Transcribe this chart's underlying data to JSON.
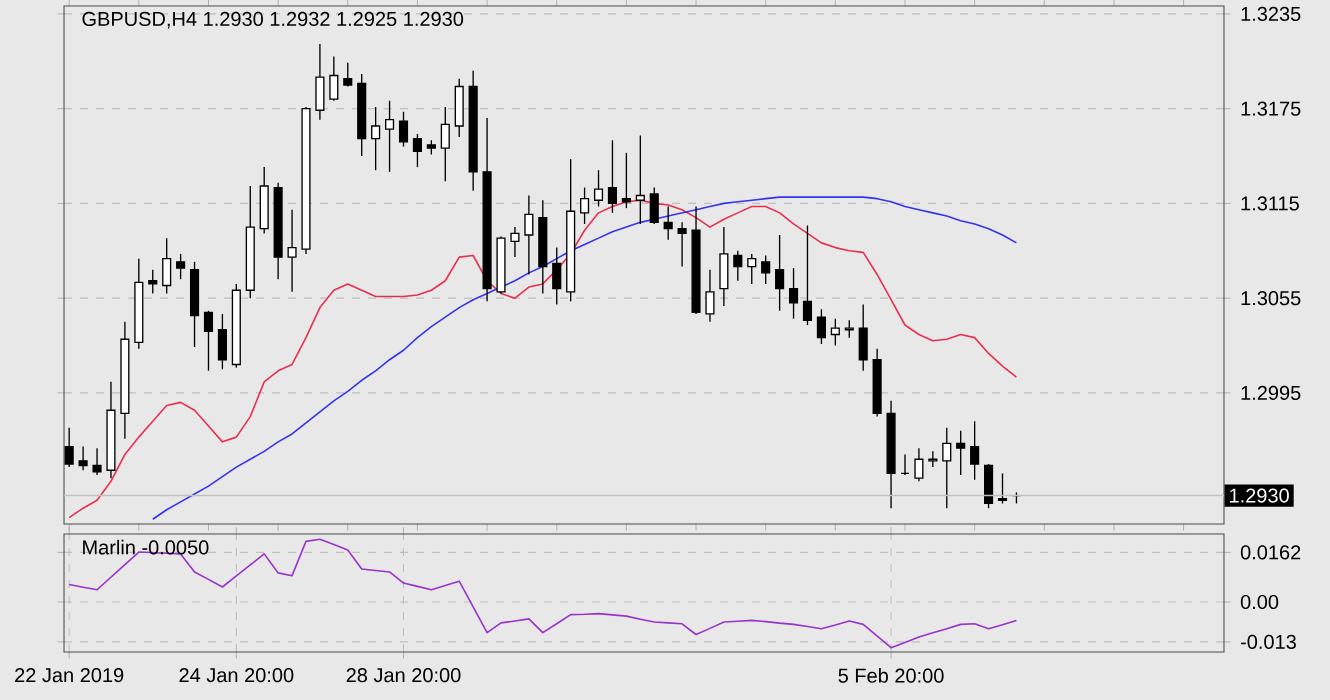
{
  "chart_data": [
    {
      "type": "candlestick",
      "title": "GBPUSD,H4 1.2930 1.2932 1.2925 1.2930",
      "categories": [
        null,
        null,
        null,
        null,
        null,
        null,
        null,
        null,
        null,
        null,
        null,
        null,
        null,
        null,
        null,
        null,
        null,
        null,
        null,
        null,
        null,
        null,
        null,
        null,
        null,
        null,
        null,
        null,
        null,
        null,
        null,
        null,
        null,
        null,
        null,
        null,
        null,
        null,
        null,
        null,
        null,
        null,
        null,
        null,
        null,
        null,
        null,
        null,
        null,
        null,
        null,
        null,
        null,
        null,
        null,
        null,
        null,
        null,
        null,
        null,
        null,
        null,
        null,
        null,
        null,
        null,
        null,
        null,
        null
      ],
      "ohlc": [
        [
          1.2961,
          1.2973,
          1.2948,
          1.295
        ],
        [
          1.2952,
          1.2961,
          1.2946,
          1.2949
        ],
        [
          1.2949,
          1.296,
          1.2943,
          1.2945
        ],
        [
          1.2946,
          1.3002,
          1.2941,
          1.2984
        ],
        [
          1.2982,
          1.304,
          1.2966,
          1.3029
        ],
        [
          1.3027,
          1.308,
          1.3023,
          1.3065
        ],
        [
          1.3066,
          1.3073,
          1.3058,
          1.3064
        ],
        [
          1.3063,
          1.3093,
          1.3058,
          1.308
        ],
        [
          1.3078,
          1.3083,
          1.3067,
          1.3074
        ],
        [
          1.3073,
          1.3078,
          1.3024,
          1.3044
        ],
        [
          1.3046,
          1.3047,
          1.3009,
          1.3034
        ],
        [
          1.3035,
          1.3045,
          1.301,
          1.3016
        ],
        [
          1.3013,
          1.3064,
          1.3011,
          1.306
        ],
        [
          1.306,
          1.3126,
          1.3055,
          1.31
        ],
        [
          1.3099,
          1.3138,
          1.3096,
          1.3126
        ],
        [
          1.3125,
          1.3128,
          1.3067,
          1.3081
        ],
        [
          1.3081,
          1.3111,
          1.3059,
          1.3087
        ],
        [
          1.3086,
          1.3176,
          1.3083,
          1.3175
        ],
        [
          1.3174,
          1.3216,
          1.3168,
          1.3195
        ],
        [
          1.3181,
          1.3208,
          1.318,
          1.3196
        ],
        [
          1.3194,
          1.3204,
          1.3189,
          1.319
        ],
        [
          1.3191,
          1.3197,
          1.3145,
          1.3156
        ],
        [
          1.3156,
          1.3176,
          1.3136,
          1.3164
        ],
        [
          1.3162,
          1.318,
          1.3135,
          1.3168
        ],
        [
          1.3167,
          1.3173,
          1.3151,
          1.3154
        ],
        [
          1.3156,
          1.3159,
          1.3138,
          1.3148
        ],
        [
          1.3152,
          1.3155,
          1.3146,
          1.315
        ],
        [
          1.315,
          1.3176,
          1.3129,
          1.3165
        ],
        [
          1.3164,
          1.3194,
          1.3157,
          1.3189
        ],
        [
          1.3189,
          1.3199,
          1.3123,
          1.3135
        ],
        [
          1.3135,
          1.3169,
          1.3053,
          1.3061
        ],
        [
          1.3059,
          1.3094,
          1.3058,
          1.3093
        ],
        [
          1.3091,
          1.31,
          1.3081,
          1.3096
        ],
        [
          1.3095,
          1.312,
          1.307,
          1.3108
        ],
        [
          1.3106,
          1.3117,
          1.3058,
          1.3075
        ],
        [
          1.3077,
          1.3087,
          1.3051,
          1.3061
        ],
        [
          1.3059,
          1.3143,
          1.3053,
          1.311
        ],
        [
          1.3109,
          1.3125,
          1.3102,
          1.3118
        ],
        [
          1.3117,
          1.3136,
          1.3113,
          1.3124
        ],
        [
          1.3125,
          1.3155,
          1.3109,
          1.3115
        ],
        [
          1.3118,
          1.3147,
          1.3112,
          1.3116
        ],
        [
          1.3117,
          1.3158,
          1.3102,
          1.312
        ],
        [
          1.3121,
          1.3125,
          1.3102,
          1.3103
        ],
        [
          1.3103,
          1.3113,
          1.3092,
          1.3099
        ],
        [
          1.3099,
          1.3103,
          1.3075,
          1.3096
        ],
        [
          1.3098,
          1.3113,
          1.3045,
          1.3046
        ],
        [
          1.3045,
          1.3073,
          1.304,
          1.3059
        ],
        [
          1.3061,
          1.31,
          1.305,
          1.3083
        ],
        [
          1.3082,
          1.3085,
          1.3066,
          1.3075
        ],
        [
          1.3075,
          1.3083,
          1.3064,
          1.308
        ],
        [
          1.3078,
          1.3082,
          1.3064,
          1.3071
        ],
        [
          1.3073,
          1.3095,
          1.3047,
          1.3061
        ],
        [
          1.3061,
          1.3074,
          1.3042,
          1.3052
        ],
        [
          1.3053,
          1.3101,
          1.3038,
          1.3041
        ],
        [
          1.3043,
          1.3048,
          1.3026,
          1.303
        ],
        [
          1.3032,
          1.3042,
          1.3025,
          1.3036
        ],
        [
          1.3035,
          1.3041,
          1.303,
          1.3036
        ],
        [
          1.3036,
          1.3051,
          1.3009,
          1.3016
        ],
        [
          1.3016,
          1.3023,
          1.298,
          1.2982
        ],
        [
          1.2982,
          1.299,
          1.2922,
          1.2944
        ],
        [
          1.2944,
          1.2956,
          1.2943,
          1.2944
        ],
        [
          1.2941,
          1.296,
          1.2939,
          1.2953
        ],
        [
          1.2952,
          1.2958,
          1.2948,
          1.2953
        ],
        [
          1.2952,
          1.2973,
          1.2922,
          1.2963
        ],
        [
          1.2963,
          1.2971,
          1.2943,
          1.296
        ],
        [
          1.2961,
          1.2977,
          1.294,
          1.295
        ],
        [
          1.2949,
          1.295,
          1.2922,
          1.2925
        ],
        [
          1.2928,
          1.2944,
          1.2925,
          1.2927
        ],
        [
          1.293,
          1.2932,
          1.2925,
          1.293
        ]
      ],
      "series": [
        {
          "type": "line",
          "color": "#e8304e",
          "values": [
            1.2916,
            1.2922,
            1.2927,
            1.2939,
            1.2956,
            1.2967,
            1.2977,
            1.2987,
            1.2989,
            1.2984,
            1.2974,
            1.2964,
            1.2967,
            1.298,
            1.3002,
            1.3009,
            1.3013,
            1.303,
            1.3049,
            1.306,
            1.3064,
            1.306,
            1.3056,
            1.3056,
            1.3056,
            1.3057,
            1.306,
            1.3066,
            1.3081,
            1.3082,
            1.3066,
            1.3058,
            1.3055,
            1.3062,
            1.3064,
            1.3073,
            1.3083,
            1.3098,
            1.3109,
            1.3113,
            1.3116,
            1.3117,
            1.3115,
            1.3114,
            1.3111,
            1.3106,
            1.31,
            1.3105,
            1.3109,
            1.3113,
            1.3113,
            1.3109,
            1.3102,
            1.3096,
            1.309,
            1.3087,
            1.3085,
            1.3084,
            1.307,
            1.3054,
            1.3038,
            1.3032,
            1.3028,
            1.3029,
            1.3032,
            1.303,
            1.302,
            1.3012,
            1.3005
          ]
        },
        {
          "type": "line",
          "color": "#3434f0",
          "values": [
            null,
            null,
            null,
            null,
            null,
            null,
            1.2915,
            1.2921,
            1.2926,
            1.2931,
            1.2936,
            1.2942,
            1.2948,
            1.2953,
            1.2958,
            1.2964,
            1.2969,
            1.2976,
            1.2983,
            1.299,
            1.2996,
            1.3003,
            1.3009,
            1.3016,
            1.3022,
            1.303,
            1.3037,
            1.3043,
            1.3049,
            1.3054,
            1.3058,
            1.3062,
            1.3066,
            1.3071,
            1.3075,
            1.308,
            1.3085,
            1.3089,
            1.3093,
            1.3097,
            1.31,
            1.3103,
            1.3105,
            1.3107,
            1.3109,
            1.3111,
            1.3113,
            1.3115,
            1.3116,
            1.3117,
            1.3118,
            1.3119,
            1.3119,
            1.3119,
            1.3119,
            1.3119,
            1.3119,
            1.3119,
            1.3118,
            1.3116,
            1.3113,
            1.3111,
            1.3109,
            1.3107,
            1.3104,
            1.3102,
            1.3099,
            1.3095,
            1.309
          ]
        }
      ],
      "ylim": [
        1.2912,
        1.324
      ],
      "yticks": [
        1.2995,
        1.3055,
        1.3115,
        1.3175,
        1.3235
      ],
      "ref_lines": [
        {
          "axis": "y",
          "value": 1.293,
          "label": "1.2930",
          "color": "#c0c0c0"
        }
      ],
      "grid": "y"
    },
    {
      "type": "line",
      "title": "Marlin -0.0050",
      "categories": [
        "22 Jan 2019",
        null,
        null,
        null,
        null,
        null,
        null,
        null,
        null,
        null,
        null,
        null,
        "24 Jan 20:00",
        null,
        null,
        null,
        null,
        null,
        null,
        null,
        null,
        null,
        null,
        null,
        "28 Jan 20:00",
        null,
        null,
        null,
        null,
        null,
        null,
        null,
        null,
        null,
        null,
        null,
        null,
        null,
        null,
        null,
        null,
        null,
        null,
        null,
        null,
        null,
        null,
        null,
        null,
        null,
        null,
        null,
        null,
        null,
        null,
        null,
        null,
        null,
        null,
        "5 Feb 20:00",
        null,
        null,
        null,
        null,
        null,
        null,
        null,
        null,
        null
      ],
      "series": [
        {
          "color": "#9933cc",
          "values": [
            0.0057,
            0.0048,
            0.004,
            0.0081,
            0.0122,
            0.0163,
            0.0161,
            0.0159,
            0.0157,
            0.0098,
            0.0074,
            0.0049,
            0.0085,
            0.0121,
            0.0157,
            0.0095,
            0.0086,
            0.0198,
            0.0205,
            0.0188,
            0.017,
            0.0108,
            0.0103,
            0.0098,
            0.0062,
            0.0051,
            0.004,
            0.0054,
            0.0068,
            -0.0016,
            -0.01,
            -0.0068,
            -0.0062,
            -0.0055,
            -0.01,
            -0.0071,
            -0.0041,
            -0.004,
            -0.0038,
            -0.0042,
            -0.0046,
            -0.0056,
            -0.0065,
            -0.0068,
            -0.0071,
            -0.0106,
            -0.0086,
            -0.0065,
            -0.0063,
            -0.006,
            -0.0064,
            -0.0069,
            -0.0073,
            -0.008,
            -0.0087,
            -0.0075,
            -0.0062,
            -0.0073,
            -0.0111,
            -0.0149,
            -0.0132,
            -0.0114,
            -0.01,
            -0.0087,
            -0.0073,
            -0.0071,
            -0.0087,
            -0.0074,
            -0.006
          ]
        }
      ],
      "ylim": [
        -0.0163,
        0.0222
      ],
      "yticks": [
        -0.013,
        {
          "value": 0,
          "label": "0.00"
        },
        0.0162
      ],
      "grid": true
    }
  ]
}
